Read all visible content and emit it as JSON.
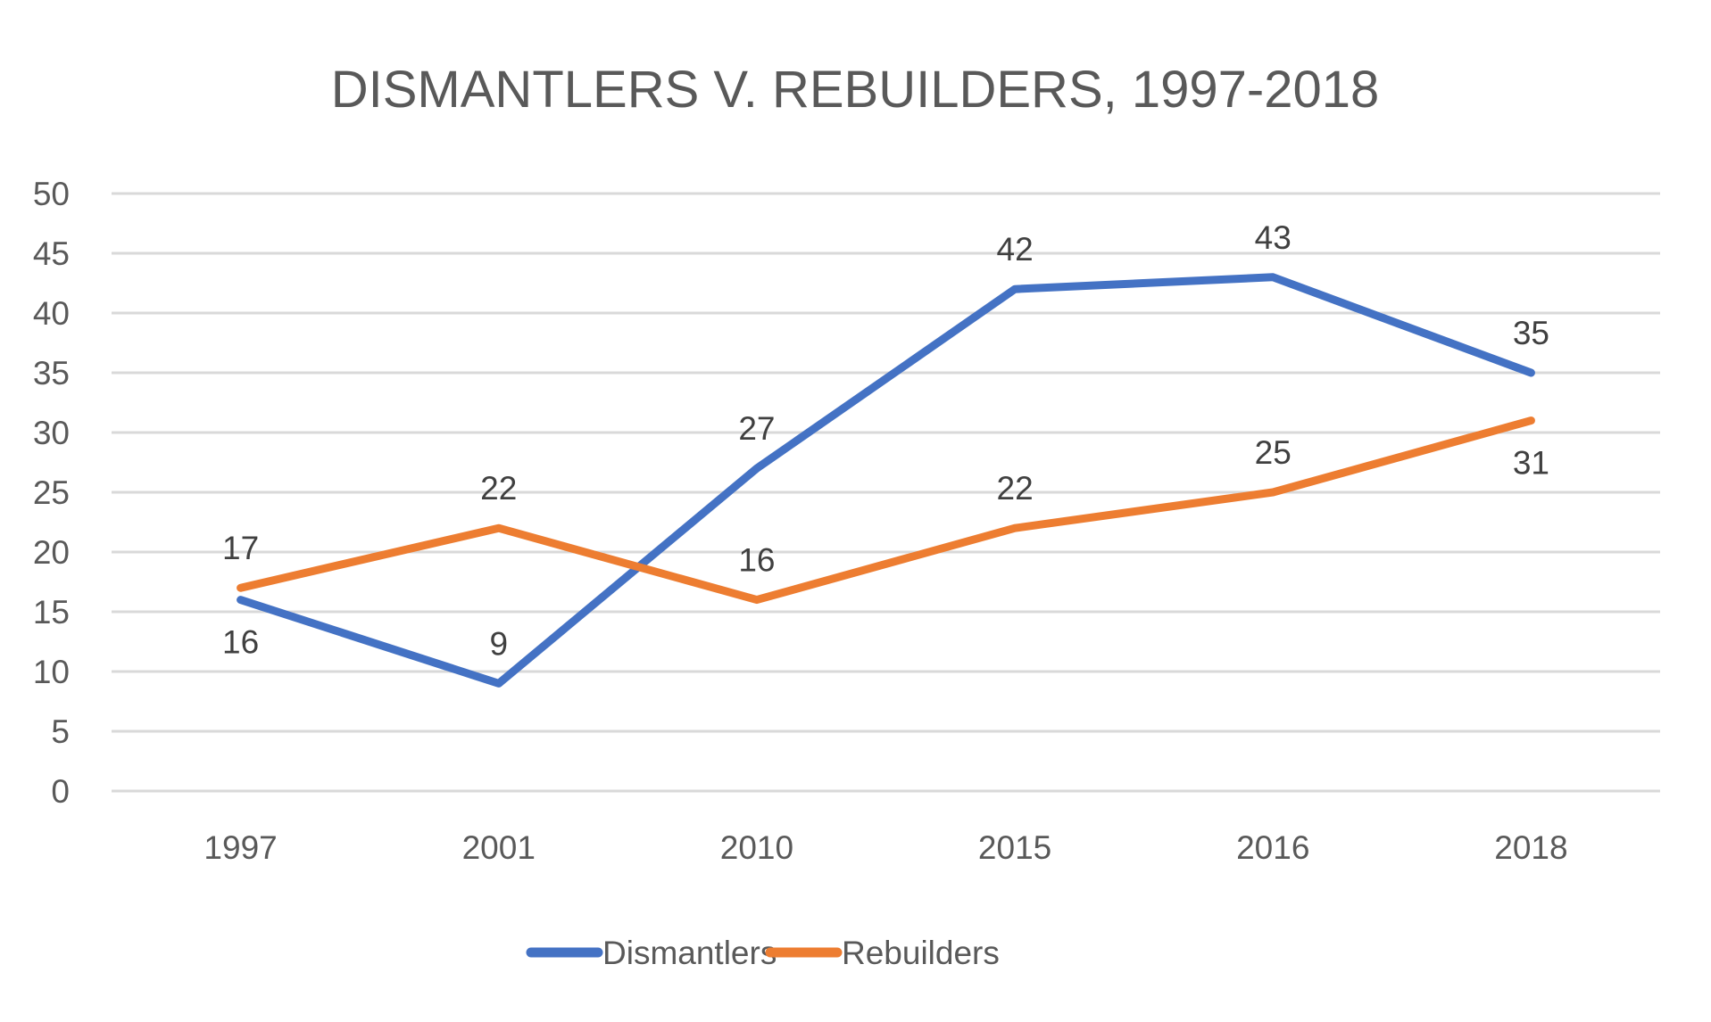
{
  "chart_data": {
    "type": "line",
    "title": "DISMANTLERS V. REBUILDERS, 1997-2018",
    "xlabel": "",
    "ylabel": "",
    "categories": [
      "1997",
      "2001",
      "2010",
      "2015",
      "2016",
      "2018"
    ],
    "ylim": [
      0,
      50
    ],
    "yticks": [
      "0",
      "5",
      "10",
      "15",
      "20",
      "25",
      "30",
      "35",
      "40",
      "45",
      "50"
    ],
    "grid": true,
    "legend_position": "bottom",
    "series": [
      {
        "name": "Dismantlers",
        "color": "#4472C4",
        "values": [
          16,
          9,
          27,
          42,
          43,
          35
        ],
        "label_positions": [
          "below",
          "above",
          "above",
          "above",
          "above",
          "above"
        ]
      },
      {
        "name": "Rebuilders",
        "color": "#ED7D31",
        "values": [
          17,
          22,
          16,
          22,
          25,
          31
        ],
        "label_positions": [
          "above",
          "above",
          "above",
          "above",
          "above",
          "below"
        ]
      }
    ]
  }
}
